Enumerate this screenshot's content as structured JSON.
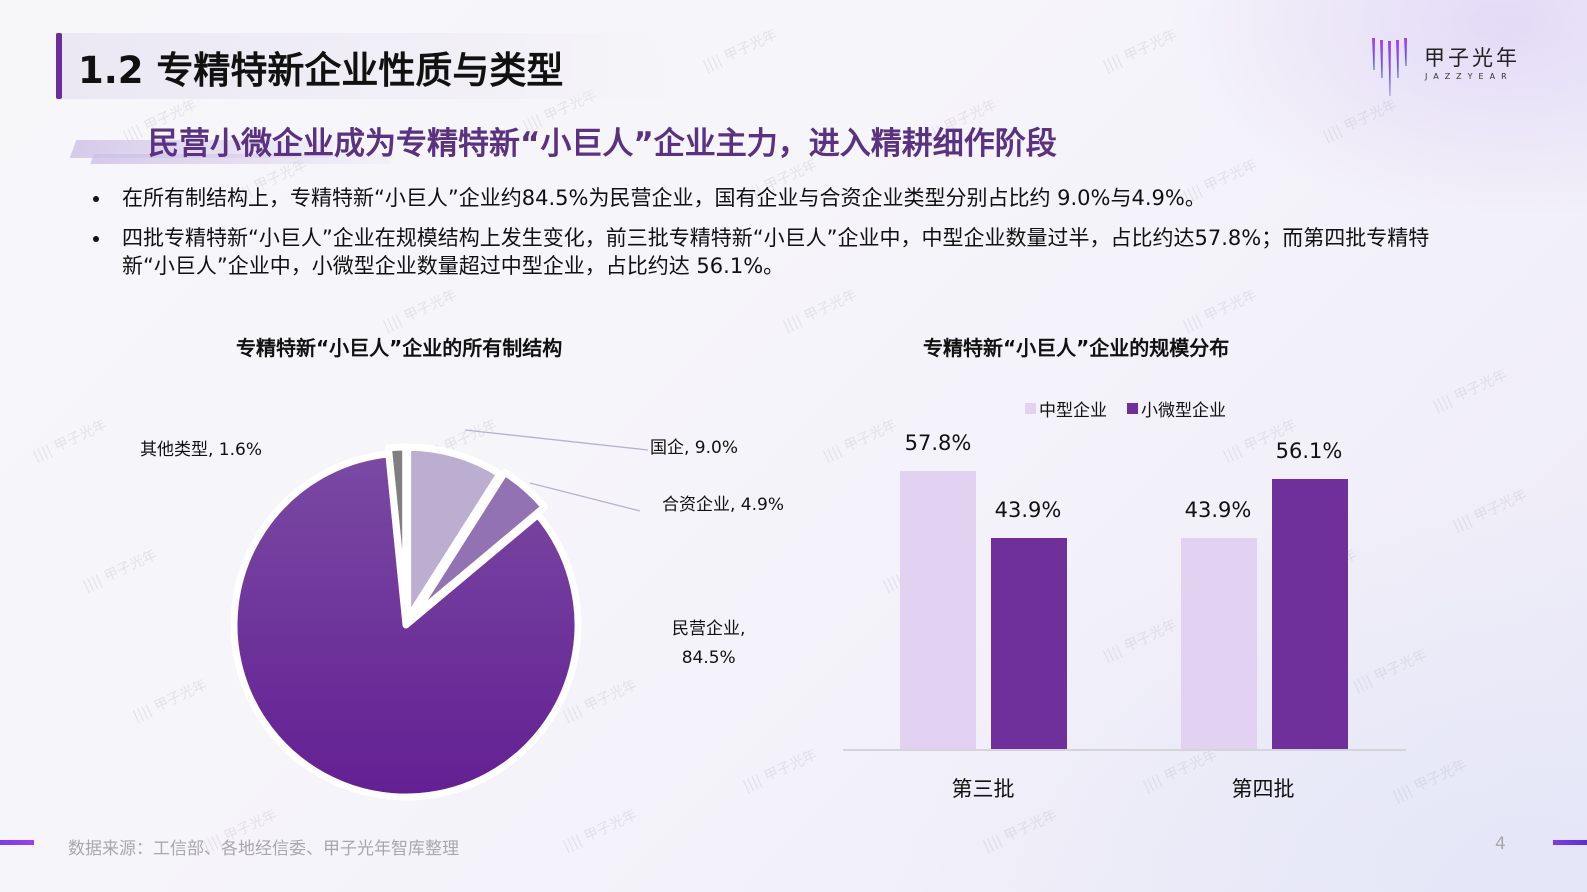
{
  "header": {
    "title": "1.2 专精特新企业性质与类型",
    "subtitle": "民营小微企业成为专精特新“小巨人”企业主力，进入精耕细作阶段"
  },
  "logo": {
    "name": "甲子光年",
    "sub": "JAZZYEAR",
    "colors": [
      "#7b3bf0",
      "#4e5ce8",
      "#a93ff0"
    ]
  },
  "bullets": [
    "在所有制结构上，专精特新“小巨人”企业约84.5%为民营企业，国有企业与合资企业类型分别占比约 9.0%与4.9%。",
    "四批专精特新“小巨人”企业在规模结构上发生变化，前三批专精特新“小巨人”企业中，中型企业数量过半，占比约达57.8%；而第四批专精特新“小巨人”企业中，小微型企业数量超过中型企业，占比约达 56.1%。"
  ],
  "pie_chart": {
    "title": "专精特新“小巨人”企业的所有制结构",
    "labels": {
      "state": "国企, 9.0%",
      "jv": "合资企业, 4.9%",
      "private_line1": "民营企业,",
      "private_line2": "84.5%",
      "other": "其他类型, 1.6%"
    }
  },
  "bar_chart": {
    "title": "专精特新“小巨人”企业的规模分布",
    "legend": [
      "中型企业",
      "小微型企业"
    ],
    "value_labels": [
      "57.8%",
      "43.9%",
      "43.9%",
      "56.1%"
    ],
    "categories": [
      "第三批",
      "第四批"
    ]
  },
  "chart_data": [
    {
      "type": "pie",
      "title": "专精特新“小巨人”企业的所有制结构",
      "labels": [
        "国企",
        "合资企业",
        "民营企业",
        "其他类型"
      ],
      "values": [
        9.0,
        4.9,
        84.5,
        1.6
      ],
      "unit": "%",
      "colors": [
        "#bbaed0",
        "#9272b3",
        "#6b2a98",
        "#7f7f7f"
      ],
      "start_angle": "12 o'clock, clockwise",
      "exploded": true
    },
    {
      "type": "bar",
      "title": "专精特新“小巨人”企业的规模分布",
      "categories": [
        "第三批",
        "第四批"
      ],
      "series": [
        {
          "name": "中型企业",
          "values": [
            57.8,
            43.9
          ],
          "color": "#e2d1f0"
        },
        {
          "name": "小微型企业",
          "values": [
            43.9,
            56.1
          ],
          "color": "#70309b"
        }
      ],
      "unit": "%",
      "xlabel": "",
      "ylabel": "",
      "grid": false,
      "legend_position": "top",
      "data_labels": true
    }
  ],
  "footer": {
    "source": "数据来源：工信部、各地经信委、甲子光年智库整理",
    "page": "4"
  },
  "watermark_text": "甲子光年"
}
